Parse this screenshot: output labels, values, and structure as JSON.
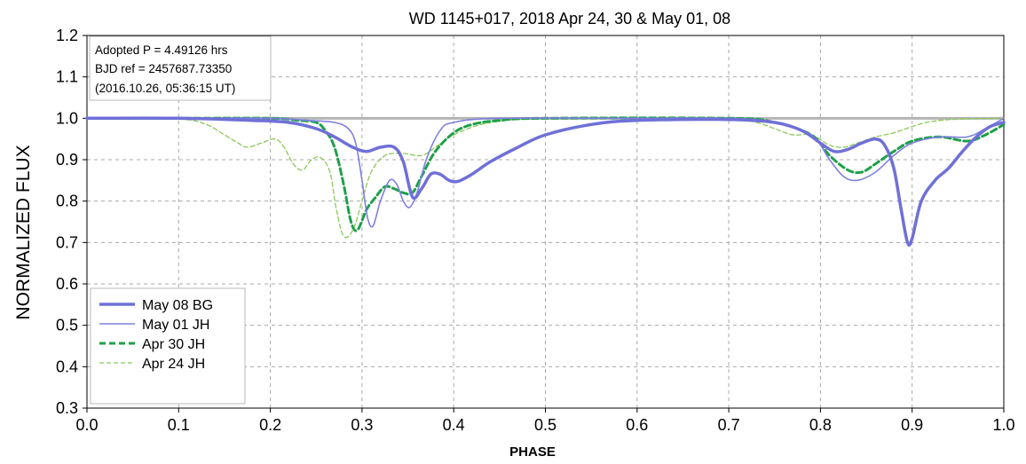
{
  "chart_data": {
    "type": "line",
    "title": "WD 1145+017, 2018 Apr 24, 30 & May 01, 08",
    "xlabel": "PHASE",
    "ylabel": "NORMALIZED FLUX",
    "xlim": [
      0.0,
      1.0
    ],
    "ylim": [
      0.3,
      1.2
    ],
    "x_ticks": [
      "0.0",
      "0.1",
      "0.2",
      "0.3",
      "0.4",
      "0.5",
      "0.6",
      "0.7",
      "0.8",
      "0.9",
      "1.0"
    ],
    "y_ticks": [
      "0.3",
      "0.4",
      "0.5",
      "0.6",
      "0.7",
      "0.8",
      "0.9",
      "1.0",
      "1.1",
      "1.2"
    ],
    "grid": true,
    "legend_position": "bottom-left",
    "annotation": [
      "Adopted P = 4.49126 hrs",
      "BJD ref = 2457687.73350",
      "(2016.10.26, 05:36:15 UT)"
    ],
    "reference_line": 1.0,
    "series": [
      {
        "name": "May 08 BG",
        "color": "#7070d8",
        "style": "solid-thick",
        "points": [
          [
            0.0,
            1.0
          ],
          [
            0.1,
            1.0
          ],
          [
            0.18,
            0.995
          ],
          [
            0.22,
            0.99
          ],
          [
            0.25,
            0.975
          ],
          [
            0.27,
            0.955
          ],
          [
            0.29,
            0.93
          ],
          [
            0.305,
            0.92
          ],
          [
            0.32,
            0.93
          ],
          [
            0.335,
            0.93
          ],
          [
            0.345,
            0.895
          ],
          [
            0.355,
            0.81
          ],
          [
            0.365,
            0.83
          ],
          [
            0.375,
            0.865
          ],
          [
            0.385,
            0.865
          ],
          [
            0.395,
            0.85
          ],
          [
            0.405,
            0.848
          ],
          [
            0.42,
            0.865
          ],
          [
            0.44,
            0.895
          ],
          [
            0.47,
            0.93
          ],
          [
            0.5,
            0.96
          ],
          [
            0.55,
            0.985
          ],
          [
            0.6,
            0.995
          ],
          [
            0.7,
            0.997
          ],
          [
            0.75,
            0.99
          ],
          [
            0.78,
            0.97
          ],
          [
            0.8,
            0.94
          ],
          [
            0.815,
            0.92
          ],
          [
            0.83,
            0.925
          ],
          [
            0.845,
            0.94
          ],
          [
            0.86,
            0.95
          ],
          [
            0.87,
            0.935
          ],
          [
            0.88,
            0.88
          ],
          [
            0.888,
            0.78
          ],
          [
            0.895,
            0.7
          ],
          [
            0.9,
            0.71
          ],
          [
            0.91,
            0.8
          ],
          [
            0.925,
            0.85
          ],
          [
            0.94,
            0.88
          ],
          [
            0.955,
            0.92
          ],
          [
            0.97,
            0.955
          ],
          [
            0.985,
            0.98
          ],
          [
            1.0,
            0.99
          ]
        ]
      },
      {
        "name": "May 01 JH",
        "color": "#8080e0",
        "style": "solid-thin",
        "points": [
          [
            0.0,
            1.0
          ],
          [
            0.1,
            1.0
          ],
          [
            0.2,
            1.0
          ],
          [
            0.24,
            0.995
          ],
          [
            0.27,
            0.99
          ],
          [
            0.285,
            0.975
          ],
          [
            0.293,
            0.94
          ],
          [
            0.3,
            0.85
          ],
          [
            0.306,
            0.76
          ],
          [
            0.312,
            0.74
          ],
          [
            0.32,
            0.8
          ],
          [
            0.33,
            0.85
          ],
          [
            0.338,
            0.84
          ],
          [
            0.345,
            0.8
          ],
          [
            0.352,
            0.785
          ],
          [
            0.36,
            0.82
          ],
          [
            0.37,
            0.9
          ],
          [
            0.385,
            0.97
          ],
          [
            0.4,
            0.99
          ],
          [
            0.45,
            1.0
          ],
          [
            0.6,
            1.0
          ],
          [
            0.7,
            1.0
          ],
          [
            0.75,
            0.99
          ],
          [
            0.79,
            0.96
          ],
          [
            0.81,
            0.9
          ],
          [
            0.825,
            0.86
          ],
          [
            0.84,
            0.85
          ],
          [
            0.86,
            0.87
          ],
          [
            0.88,
            0.91
          ],
          [
            0.9,
            0.94
          ],
          [
            0.93,
            0.955
          ],
          [
            0.96,
            0.955
          ],
          [
            0.98,
            0.975
          ],
          [
            1.0,
            1.0
          ]
        ]
      },
      {
        "name": "Apr 30 JH",
        "color": "#1ea04a",
        "style": "dashed-thick",
        "points": [
          [
            0.0,
            1.0
          ],
          [
            0.1,
            1.0
          ],
          [
            0.2,
            1.0
          ],
          [
            0.23,
            0.995
          ],
          [
            0.25,
            0.99
          ],
          [
            0.26,
            0.97
          ],
          [
            0.27,
            0.93
          ],
          [
            0.28,
            0.84
          ],
          [
            0.288,
            0.75
          ],
          [
            0.295,
            0.73
          ],
          [
            0.305,
            0.78
          ],
          [
            0.315,
            0.81
          ],
          [
            0.325,
            0.835
          ],
          [
            0.335,
            0.83
          ],
          [
            0.345,
            0.82
          ],
          [
            0.355,
            0.82
          ],
          [
            0.365,
            0.86
          ],
          [
            0.38,
            0.92
          ],
          [
            0.4,
            0.965
          ],
          [
            0.42,
            0.985
          ],
          [
            0.45,
            0.995
          ],
          [
            0.5,
            1.0
          ],
          [
            0.7,
            1.0
          ],
          [
            0.75,
            0.99
          ],
          [
            0.79,
            0.96
          ],
          [
            0.81,
            0.91
          ],
          [
            0.83,
            0.875
          ],
          [
            0.845,
            0.87
          ],
          [
            0.86,
            0.89
          ],
          [
            0.88,
            0.92
          ],
          [
            0.9,
            0.945
          ],
          [
            0.93,
            0.955
          ],
          [
            0.96,
            0.945
          ],
          [
            0.98,
            0.96
          ],
          [
            1.0,
            0.985
          ]
        ]
      },
      {
        "name": "Apr 24 JH",
        "color": "#8cc85a",
        "style": "dashed-thin",
        "points": [
          [
            0.0,
            1.0
          ],
          [
            0.1,
            0.998
          ],
          [
            0.13,
            0.985
          ],
          [
            0.15,
            0.96
          ],
          [
            0.165,
            0.94
          ],
          [
            0.175,
            0.93
          ],
          [
            0.19,
            0.94
          ],
          [
            0.205,
            0.95
          ],
          [
            0.215,
            0.93
          ],
          [
            0.225,
            0.89
          ],
          [
            0.235,
            0.875
          ],
          [
            0.245,
            0.9
          ],
          [
            0.255,
            0.905
          ],
          [
            0.265,
            0.87
          ],
          [
            0.272,
            0.78
          ],
          [
            0.28,
            0.715
          ],
          [
            0.29,
            0.73
          ],
          [
            0.3,
            0.8
          ],
          [
            0.31,
            0.87
          ],
          [
            0.325,
            0.91
          ],
          [
            0.345,
            0.915
          ],
          [
            0.365,
            0.91
          ],
          [
            0.38,
            0.93
          ],
          [
            0.4,
            0.96
          ],
          [
            0.43,
            0.985
          ],
          [
            0.47,
            0.998
          ],
          [
            0.5,
            1.0
          ],
          [
            0.6,
            1.0
          ],
          [
            0.7,
            1.0
          ],
          [
            0.73,
            0.99
          ],
          [
            0.75,
            0.975
          ],
          [
            0.77,
            0.96
          ],
          [
            0.79,
            0.96
          ],
          [
            0.81,
            0.935
          ],
          [
            0.825,
            0.93
          ],
          [
            0.84,
            0.94
          ],
          [
            0.86,
            0.955
          ],
          [
            0.88,
            0.965
          ],
          [
            0.9,
            0.98
          ],
          [
            0.92,
            0.992
          ],
          [
            0.95,
            0.998
          ],
          [
            1.0,
            1.0
          ]
        ]
      }
    ]
  }
}
